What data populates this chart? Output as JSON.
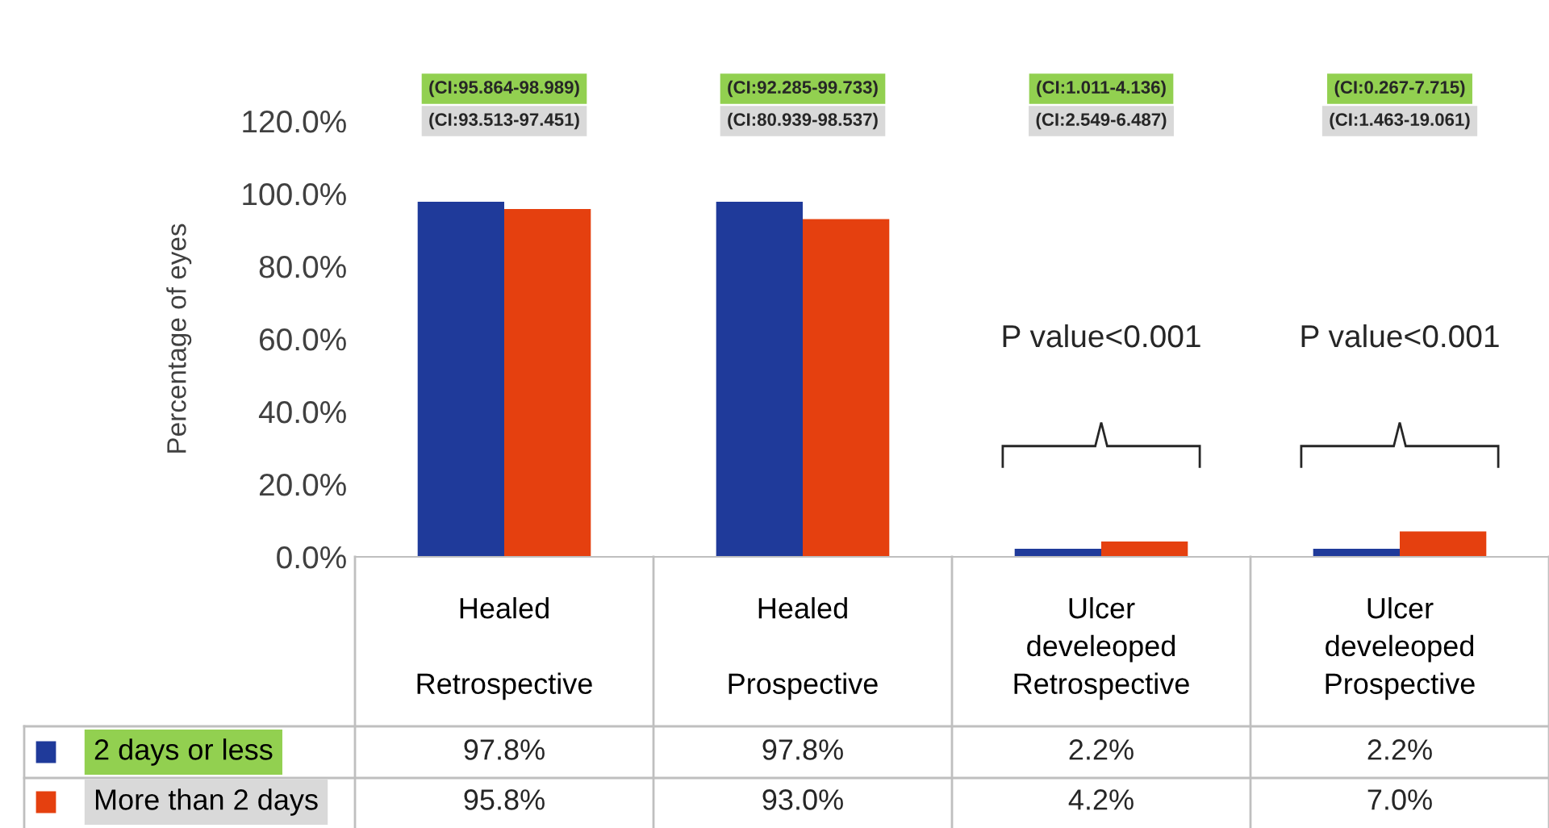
{
  "chart_data": {
    "type": "bar",
    "ylabel": "Percentage of eyes",
    "categories": [
      "Healed\n\nRetrospective",
      "Healed\n\nProspective",
      "Ulcer\ndeveleoped\nRetrospective",
      "Ulcer\ndeveleoped\nProspective"
    ],
    "series": [
      {
        "name": "2 days or less",
        "color": "#1f3a9a",
        "values": [
          97.8,
          97.8,
          2.2,
          2.2
        ],
        "value_labels": [
          "97.8%",
          "97.8%",
          "2.2%",
          "2.2%"
        ]
      },
      {
        "name": "More than 2 days",
        "color": "#e5400f",
        "values": [
          95.8,
          93.0,
          4.2,
          7.0
        ],
        "value_labels": [
          "95.8%",
          "93.0%",
          "4.2%",
          "7.0%"
        ]
      }
    ],
    "ylim": [
      0,
      120
    ],
    "yticks": [
      {
        "value": 0,
        "label": "0.0%"
      },
      {
        "value": 20,
        "label": "20.0%"
      },
      {
        "value": 40,
        "label": "40.0%"
      },
      {
        "value": 60,
        "label": "60.0%"
      },
      {
        "value": 80,
        "label": "80.0%"
      },
      {
        "value": 100,
        "label": "100.0%"
      },
      {
        "value": 120,
        "label": "120.0%"
      }
    ],
    "grid": false,
    "legend": "bottom left",
    "annotations": [
      "(CI:95.864-98.989)",
      "(CI:93.513-97.451)",
      "(CI:92.285-99.733)",
      "(CI:80.939-98.537)",
      "(CI:1.011-4.136)",
      "(CI:2.549-6.487)",
      "(CI:0.267-7.715)",
      "(CI:1.463-19.061)",
      "P value<0.001",
      "P value<0.001"
    ]
  }
}
